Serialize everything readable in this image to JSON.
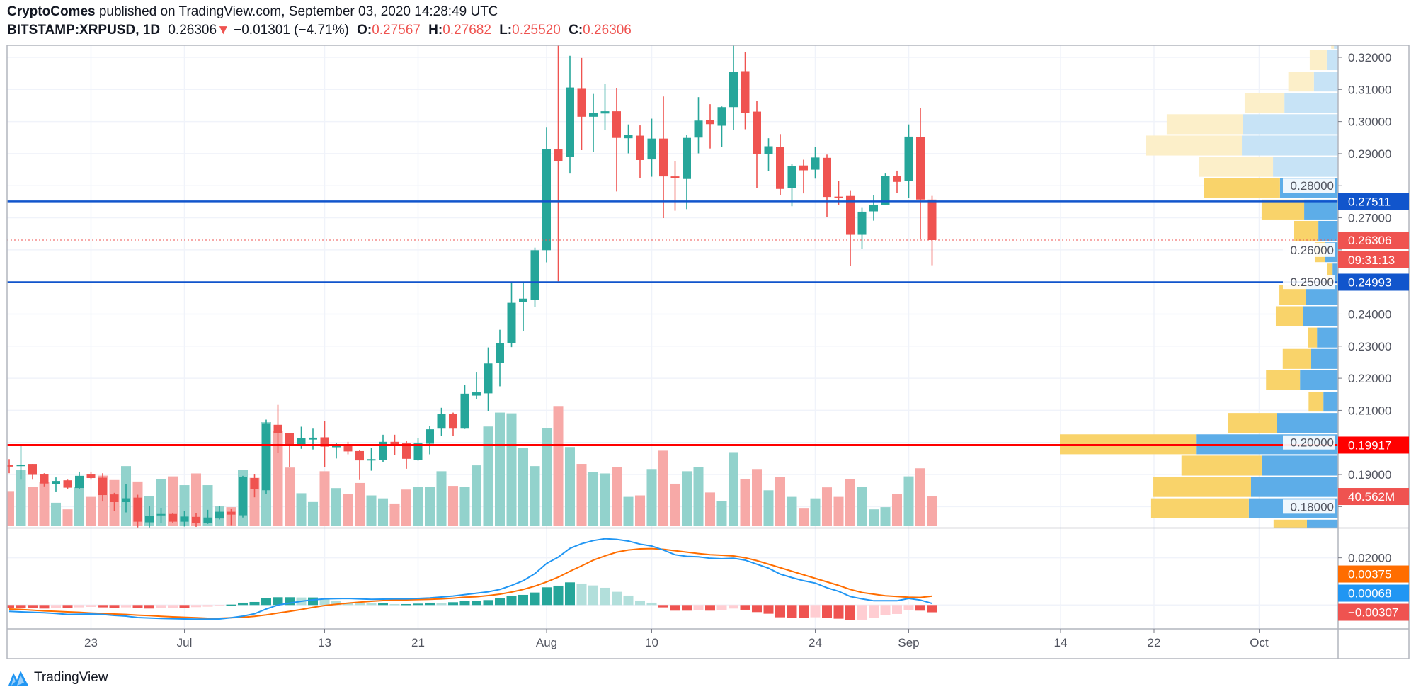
{
  "header": {
    "author": "CryptoComes",
    "published_text": "published on TradingView.com, September 03, 2020 14:28:49 UTC",
    "symbol": "BITSTAMP:XRPUSD, 1D",
    "last": "0.26306",
    "direction_icon": "triangle-down-icon",
    "change": "−0.01301 (−4.71%)",
    "o_label": "O:",
    "o": "0.27567",
    "h_label": "H:",
    "h": "0.27682",
    "l_label": "L:",
    "l": "0.25520",
    "c_label": "C:",
    "c": "0.26306"
  },
  "footer": {
    "brand": "TradingView",
    "icon": "tradingview-logo-icon"
  },
  "colors": {
    "up": "#26a69a",
    "down": "#ef5350",
    "vol_up": "#92d2cc",
    "vol_down": "#f7a9a7",
    "support_line": "#1155cc",
    "key_line": "#ff0000",
    "macd": "#2196f3",
    "signal": "#ff6d00",
    "hist_up_strong": "#26a69a",
    "hist_up_weak": "#b2dfdb",
    "hist_down_strong": "#ef5350",
    "hist_down_weak": "#ffcdd2",
    "profile_up": "#5dade8",
    "profile_down": "#f9d36a",
    "profile_up_light": "#c7e3f6",
    "profile_down_light": "#fcefc9"
  },
  "chart_data": [
    {
      "type": "candlestick",
      "title": "BITSTAMP:XRPUSD, 1D",
      "price_axis": {
        "ylim": [
          0.17,
          0.325
        ],
        "ticks": [
          "0.32000",
          "0.31000",
          "0.30000",
          "0.29000",
          "0.28000",
          "0.27000",
          "0.26000",
          "0.25000",
          "0.24000",
          "0.23000",
          "0.22000",
          "0.21000",
          "0.20000",
          "0.19000",
          "0.18000"
        ]
      },
      "time_axis": {
        "ticks": [
          {
            "label": "23",
            "date": "2020-06-23"
          },
          {
            "label": "Jul",
            "date": "2020-07-01"
          },
          {
            "label": "13",
            "date": "2020-07-13"
          },
          {
            "label": "21",
            "date": "2020-07-21"
          },
          {
            "label": "Aug",
            "date": "2020-08-01"
          },
          {
            "label": "10",
            "date": "2020-08-10"
          },
          {
            "label": "24",
            "date": "2020-08-24"
          },
          {
            "label": "Sep",
            "date": "2020-09-01"
          },
          {
            "label": "14",
            "date": "2020-09-14"
          },
          {
            "label": "22",
            "date": "2020-09-22"
          },
          {
            "label": "Oct",
            "date": "2020-10-01"
          }
        ]
      },
      "grid": true,
      "columns": [
        "date",
        "open",
        "high",
        "low",
        "close",
        "volume_M"
      ],
      "candles": [
        [
          "2020-06-16",
          0.1929,
          0.1948,
          0.1904,
          0.1927,
          47
        ],
        [
          "2020-06-17",
          0.1926,
          0.1992,
          0.1884,
          0.1931,
          77
        ],
        [
          "2020-06-18",
          0.1933,
          0.1933,
          0.1884,
          0.1899,
          54
        ],
        [
          "2020-06-19",
          0.19,
          0.1904,
          0.1863,
          0.1872,
          60
        ],
        [
          "2020-06-20",
          0.1871,
          0.1891,
          0.1845,
          0.188,
          32
        ],
        [
          "2020-06-21",
          0.1882,
          0.1884,
          0.1856,
          0.1859,
          23
        ],
        [
          "2020-06-22",
          0.1858,
          0.1909,
          0.1856,
          0.1896,
          54
        ],
        [
          "2020-06-23",
          0.19,
          0.1909,
          0.1884,
          0.1889,
          40
        ],
        [
          "2020-06-24",
          0.189,
          0.1904,
          0.1816,
          0.1836,
          69
        ],
        [
          "2020-06-25",
          0.1838,
          0.1843,
          0.1786,
          0.1814,
          63
        ],
        [
          "2020-06-26",
          0.1814,
          0.1871,
          0.1782,
          0.1826,
          82
        ],
        [
          "2020-06-27",
          0.1828,
          0.1837,
          0.1735,
          0.1753,
          61
        ],
        [
          "2020-06-28",
          0.1751,
          0.1801,
          0.1735,
          0.1771,
          41
        ],
        [
          "2020-06-29",
          0.1774,
          0.1796,
          0.1749,
          0.1777,
          64
        ],
        [
          "2020-06-30",
          0.1777,
          0.1781,
          0.1749,
          0.1753,
          68
        ],
        [
          "2020-07-01",
          0.1753,
          0.1786,
          0.1738,
          0.1769,
          56
        ],
        [
          "2020-07-02",
          0.1768,
          0.1779,
          0.1737,
          0.1749,
          72
        ],
        [
          "2020-07-03",
          0.1748,
          0.179,
          0.1746,
          0.1766,
          56
        ],
        [
          "2020-07-04",
          0.1763,
          0.1801,
          0.176,
          0.1784,
          27
        ],
        [
          "2020-07-05",
          0.1784,
          0.1792,
          0.174,
          0.1775,
          26
        ],
        [
          "2020-07-06",
          0.1773,
          0.1896,
          0.1766,
          0.1893,
          77
        ],
        [
          "2020-07-07",
          0.1889,
          0.19,
          0.1829,
          0.1854,
          66
        ],
        [
          "2020-07-08",
          0.1851,
          0.2071,
          0.1839,
          0.206,
          142
        ],
        [
          "2020-07-09",
          0.2055,
          0.2117,
          0.1968,
          0.2029,
          130
        ],
        [
          "2020-07-10",
          0.2029,
          0.203,
          0.1924,
          0.199,
          80
        ],
        [
          "2020-07-11",
          0.1992,
          0.2049,
          0.198,
          0.2013,
          45
        ],
        [
          "2020-07-12",
          0.2009,
          0.2043,
          0.1978,
          0.2015,
          33
        ],
        [
          "2020-07-13",
          0.2016,
          0.2066,
          0.1924,
          0.1987,
          75
        ],
        [
          "2020-07-14",
          0.1985,
          0.1999,
          0.195,
          0.1994,
          52
        ],
        [
          "2020-07-15",
          0.1992,
          0.2002,
          0.1963,
          0.1972,
          44
        ],
        [
          "2020-07-16",
          0.1973,
          0.1977,
          0.1883,
          0.1944,
          59
        ],
        [
          "2020-07-17",
          0.1945,
          0.1983,
          0.1912,
          0.1948,
          42
        ],
        [
          "2020-07-18",
          0.1946,
          0.2024,
          0.1938,
          0.2002,
          38
        ],
        [
          "2020-07-19",
          0.2002,
          0.2024,
          0.196,
          0.1994,
          31
        ],
        [
          "2020-07-20",
          0.1997,
          0.2005,
          0.1918,
          0.1949,
          50
        ],
        [
          "2020-07-21",
          0.1946,
          0.2013,
          0.1943,
          0.1997,
          54
        ],
        [
          "2020-07-22",
          0.1996,
          0.2051,
          0.1963,
          0.2041,
          54
        ],
        [
          "2020-07-23",
          0.2043,
          0.2108,
          0.202,
          0.2089,
          75
        ],
        [
          "2020-07-24",
          0.2089,
          0.2093,
          0.2021,
          0.2043,
          55
        ],
        [
          "2020-07-25",
          0.2043,
          0.218,
          0.2042,
          0.2152,
          54
        ],
        [
          "2020-07-26",
          0.2146,
          0.222,
          0.2134,
          0.2156,
          83
        ],
        [
          "2020-07-27",
          0.2153,
          0.2296,
          0.2098,
          0.2246,
          136
        ],
        [
          "2020-07-28",
          0.2248,
          0.2351,
          0.2175,
          0.2309,
          155
        ],
        [
          "2020-07-29",
          0.2309,
          0.25,
          0.2297,
          0.2435,
          154
        ],
        [
          "2020-07-30",
          0.2437,
          0.25,
          0.2348,
          0.2448,
          107
        ],
        [
          "2020-07-31",
          0.2445,
          0.2607,
          0.2421,
          0.2599,
          82
        ],
        [
          "2020-08-01",
          0.2599,
          0.2981,
          0.2561,
          0.2914,
          134
        ],
        [
          "2020-08-02",
          0.2913,
          0.3246,
          0.2502,
          0.2877,
          164
        ],
        [
          "2020-08-03",
          0.2889,
          0.3205,
          0.284,
          0.3106,
          108
        ],
        [
          "2020-08-04",
          0.3104,
          0.3198,
          0.2911,
          0.3015,
          85
        ],
        [
          "2020-08-05",
          0.3015,
          0.3086,
          0.2906,
          0.3027,
          74
        ],
        [
          "2020-08-06",
          0.3025,
          0.3117,
          0.2974,
          0.3032,
          72
        ],
        [
          "2020-08-07",
          0.3032,
          0.3105,
          0.2782,
          0.2949,
          81
        ],
        [
          "2020-08-08",
          0.2948,
          0.2991,
          0.2901,
          0.2958,
          40
        ],
        [
          "2020-08-09",
          0.2956,
          0.2988,
          0.2824,
          0.288,
          42
        ],
        [
          "2020-08-10",
          0.2882,
          0.3009,
          0.2828,
          0.2947,
          78
        ],
        [
          "2020-08-11",
          0.2947,
          0.3078,
          0.2699,
          0.2829,
          103
        ],
        [
          "2020-08-12",
          0.2829,
          0.2876,
          0.2722,
          0.2823,
          58
        ],
        [
          "2020-08-13",
          0.2821,
          0.2959,
          0.2727,
          0.2949,
          75
        ],
        [
          "2020-08-14",
          0.295,
          0.3076,
          0.2901,
          0.3003,
          81
        ],
        [
          "2020-08-15",
          0.3005,
          0.3054,
          0.2916,
          0.2992,
          46
        ],
        [
          "2020-08-16",
          0.2987,
          0.3047,
          0.2921,
          0.3045,
          34
        ],
        [
          "2020-08-17",
          0.3045,
          0.324,
          0.2974,
          0.3154,
          101
        ],
        [
          "2020-08-18",
          0.3157,
          0.3217,
          0.2976,
          0.3027,
          64
        ],
        [
          "2020-08-19",
          0.3031,
          0.3064,
          0.2792,
          0.2898,
          78
        ],
        [
          "2020-08-20",
          0.2898,
          0.2948,
          0.2846,
          0.2923,
          49
        ],
        [
          "2020-08-21",
          0.2921,
          0.2961,
          0.277,
          0.279,
          67
        ],
        [
          "2020-08-22",
          0.2792,
          0.2867,
          0.2736,
          0.2861,
          40
        ],
        [
          "2020-08-23",
          0.2863,
          0.2881,
          0.2776,
          0.2848,
          24
        ],
        [
          "2020-08-24",
          0.285,
          0.2921,
          0.2822,
          0.2888,
          38
        ],
        [
          "2020-08-25",
          0.2887,
          0.2897,
          0.2702,
          0.2765,
          53
        ],
        [
          "2020-08-26",
          0.2766,
          0.2814,
          0.2741,
          0.2764,
          40
        ],
        [
          "2020-08-27",
          0.2768,
          0.2786,
          0.2549,
          0.2647,
          64
        ],
        [
          "2020-08-28",
          0.2647,
          0.2733,
          0.2602,
          0.2719,
          54
        ],
        [
          "2020-08-29",
          0.272,
          0.277,
          0.2691,
          0.2741,
          23
        ],
        [
          "2020-08-30",
          0.2741,
          0.284,
          0.2739,
          0.283,
          26
        ],
        [
          "2020-08-31",
          0.283,
          0.2847,
          0.2777,
          0.2812,
          44
        ],
        [
          "2020-09-01",
          0.2815,
          0.2991,
          0.2761,
          0.2953,
          68
        ],
        [
          "2020-09-02",
          0.2951,
          0.3041,
          0.2634,
          0.2757,
          79
        ],
        [
          "2020-09-03",
          0.27567,
          0.27682,
          0.2552,
          0.26306,
          40.562
        ]
      ],
      "horizontal_lines": [
        {
          "price": 0.27511,
          "label": "0.27511",
          "kind": "support"
        },
        {
          "price": 0.24993,
          "label": "0.24993",
          "kind": "support"
        },
        {
          "price": 0.19917,
          "label": "0.19917",
          "kind": "key"
        }
      ],
      "last_price": {
        "price": 0.26306,
        "label": "0.26306",
        "countdown": "09:31:13"
      },
      "last_volume_label": "40.562M",
      "volume_profile": {
        "price_top": 0.3291,
        "row_size": 0.00665,
        "unit": "percent of largest row",
        "rows": [
          [
            1.5,
            1.0,
            false
          ],
          [
            4.1,
            6.1,
            false
          ],
          [
            8.7,
            9.2,
            false
          ],
          [
            19.3,
            14.3,
            false
          ],
          [
            34.1,
            27.5,
            false
          ],
          [
            34.6,
            34.4,
            false
          ],
          [
            23.4,
            26.7,
            false
          ],
          [
            20.9,
            27.2,
            true
          ],
          [
            12.2,
            15.3,
            true
          ],
          [
            7.1,
            8.9,
            true
          ],
          [
            4.8,
            3.6,
            true
          ],
          [
            2.0,
            2.0,
            true
          ],
          [
            11.7,
            9.4,
            true
          ],
          [
            12.7,
            9.7,
            true
          ],
          [
            7.6,
            3.3,
            true
          ],
          [
            9.7,
            10.2,
            true
          ],
          [
            13.7,
            12.2,
            true
          ],
          [
            5.3,
            5.3,
            true
          ],
          [
            21.9,
            17.6,
            true
          ],
          [
            51.1,
            48.9,
            true
          ],
          [
            27.5,
            28.8,
            true
          ],
          [
            31.3,
            35.1,
            true
          ],
          [
            32.1,
            35.1,
            true
          ],
          [
            11.2,
            12.0,
            true
          ]
        ],
        "row_columns": [
          "up_volume",
          "down_volume",
          "value_area"
        ]
      }
    },
    {
      "type": "macd",
      "axis_ticks": [
        "0.02000"
      ],
      "labels": {
        "signal": "0.00375",
        "macd": "0.00068",
        "histogram": "−0.00307"
      },
      "macd": [
        -0.0027,
        -0.0029,
        -0.0031,
        -0.0033,
        -0.0036,
        -0.004,
        -0.0039,
        -0.0038,
        -0.004,
        -0.0044,
        -0.0047,
        -0.0053,
        -0.0055,
        -0.0057,
        -0.0058,
        -0.0059,
        -0.006,
        -0.006,
        -0.0059,
        -0.0054,
        -0.0047,
        -0.0037,
        -0.0017,
        0.0,
        0.0008,
        0.0016,
        0.0022,
        0.0026,
        0.0027,
        0.0028,
        0.0026,
        0.0024,
        0.0025,
        0.0026,
        0.0026,
        0.0028,
        0.003,
        0.0034,
        0.0038,
        0.0044,
        0.005,
        0.0056,
        0.0066,
        0.0083,
        0.0103,
        0.0133,
        0.0176,
        0.0203,
        0.024,
        0.026,
        0.0273,
        0.0281,
        0.0278,
        0.0271,
        0.0258,
        0.025,
        0.0233,
        0.0213,
        0.0206,
        0.0204,
        0.0198,
        0.0196,
        0.0198,
        0.019,
        0.0173,
        0.0156,
        0.0131,
        0.0116,
        0.0103,
        0.0093,
        0.0073,
        0.0058,
        0.0036,
        0.0026,
        0.0018,
        0.0018,
        0.0018,
        0.0028,
        0.0021,
        0.00068
      ],
      "signal": [
        -0.0017,
        -0.0019,
        -0.0022,
        -0.0025,
        -0.0027,
        -0.0029,
        -0.0031,
        -0.0034,
        -0.0036,
        -0.0038,
        -0.004,
        -0.0043,
        -0.0045,
        -0.0048,
        -0.005,
        -0.0052,
        -0.0054,
        -0.0056,
        -0.0056,
        -0.0054,
        -0.0052,
        -0.0048,
        -0.0042,
        -0.0034,
        -0.0027,
        -0.0019,
        -0.001,
        -0.0002,
        0.0003,
        0.0008,
        0.0012,
        0.0016,
        0.0019,
        0.0021,
        0.0022,
        0.0023,
        0.0024,
        0.0026,
        0.0029,
        0.0033,
        0.0035,
        0.004,
        0.0046,
        0.0055,
        0.0066,
        0.008,
        0.0098,
        0.0118,
        0.0143,
        0.0166,
        0.019,
        0.0208,
        0.0224,
        0.0233,
        0.0238,
        0.0239,
        0.0236,
        0.023,
        0.0224,
        0.0218,
        0.0213,
        0.0211,
        0.0208,
        0.02,
        0.0188,
        0.0173,
        0.0158,
        0.0143,
        0.0128,
        0.0113,
        0.0098,
        0.0083,
        0.0066,
        0.0053,
        0.0046,
        0.0039,
        0.0036,
        0.0033,
        0.0032,
        0.00375
      ],
      "histogram": [
        -0.0012,
        -0.0012,
        -0.0012,
        -0.0015,
        -0.0012,
        -0.0012,
        -0.001,
        -0.0008,
        -0.001,
        -0.0013,
        -0.001,
        -0.0014,
        -0.0015,
        -0.0014,
        -0.0012,
        -0.0012,
        -0.0009,
        -0.0007,
        -0.0004,
        0.0002,
        0.001,
        0.0013,
        0.0028,
        0.0033,
        0.0033,
        0.0032,
        0.0032,
        0.0024,
        0.0018,
        0.001,
        0.0008,
        0.0007,
        0.0008,
        0.0004,
        0.0004,
        0.0006,
        0.001,
        0.0008,
        0.0012,
        0.0016,
        0.0016,
        0.0021,
        0.0028,
        0.0039,
        0.0043,
        0.0053,
        0.0075,
        0.0082,
        0.0096,
        0.0091,
        0.0083,
        0.0073,
        0.0056,
        0.004,
        0.0019,
        0.001,
        -0.001,
        -0.0024,
        -0.0024,
        -0.0022,
        -0.0024,
        -0.0022,
        -0.0015,
        -0.002,
        -0.003,
        -0.0037,
        -0.0052,
        -0.0054,
        -0.0056,
        -0.0052,
        -0.0056,
        -0.0058,
        -0.0065,
        -0.0062,
        -0.0056,
        -0.0044,
        -0.0038,
        -0.0021,
        -0.0024,
        -0.00307
      ]
    }
  ]
}
